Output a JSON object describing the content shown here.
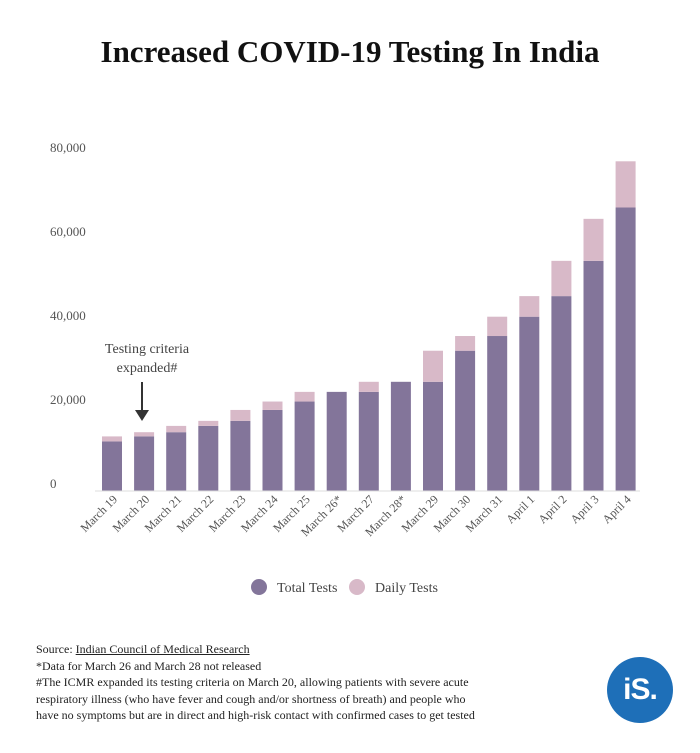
{
  "title": "Increased COVID-19 Testing In India",
  "chart_data": {
    "type": "bar",
    "stacked": true,
    "categories": [
      "March 19",
      "March 20",
      "March 21",
      "March 22",
      "March 23",
      "March 24",
      "March 25",
      "March 26*",
      "March 27",
      "March 28*",
      "March 29",
      "March 30",
      "March 31",
      "April 1",
      "April 2",
      "April 3",
      "April 4"
    ],
    "series": [
      {
        "name": "Total Tests",
        "color": "#83759a",
        "values": [
          11800,
          13000,
          14000,
          15500,
          16700,
          19300,
          21300,
          23600,
          23600,
          26000,
          26000,
          33400,
          36900,
          41500,
          46400,
          54800,
          67500
        ]
      },
      {
        "name": "Daily Tests",
        "color": "#d8b9c8",
        "values": [
          1200,
          1000,
          1500,
          1200,
          2600,
          2000,
          2300,
          0,
          2400,
          0,
          7400,
          3500,
          4600,
          4900,
          8400,
          10000,
          11000
        ]
      }
    ],
    "y_ticks": [
      "0",
      "20,000",
      "40,000",
      "60,000",
      "80,000"
    ],
    "ylim": [
      0,
      80000
    ],
    "grid": false,
    "legend": "bottom-center",
    "annotation": {
      "line1": "Testing criteria",
      "line2": "expanded#",
      "category": "March 20"
    }
  },
  "notes": {
    "source_prefix": "Source: ",
    "source_link": "Indian Council of Medical Research",
    "note1": "*Data for March 26 and March 28 not released",
    "note2": "#The ICMR expanded its testing criteria on March 20, allowing patients with severe acute",
    "note3": "respiratory illness (who have fever and cough and/or shortness of breath) and people who",
    "note4": "have no symptoms but are in direct and high-risk contact with confirmed cases to get tested"
  },
  "logo": {
    "text": "iS."
  }
}
